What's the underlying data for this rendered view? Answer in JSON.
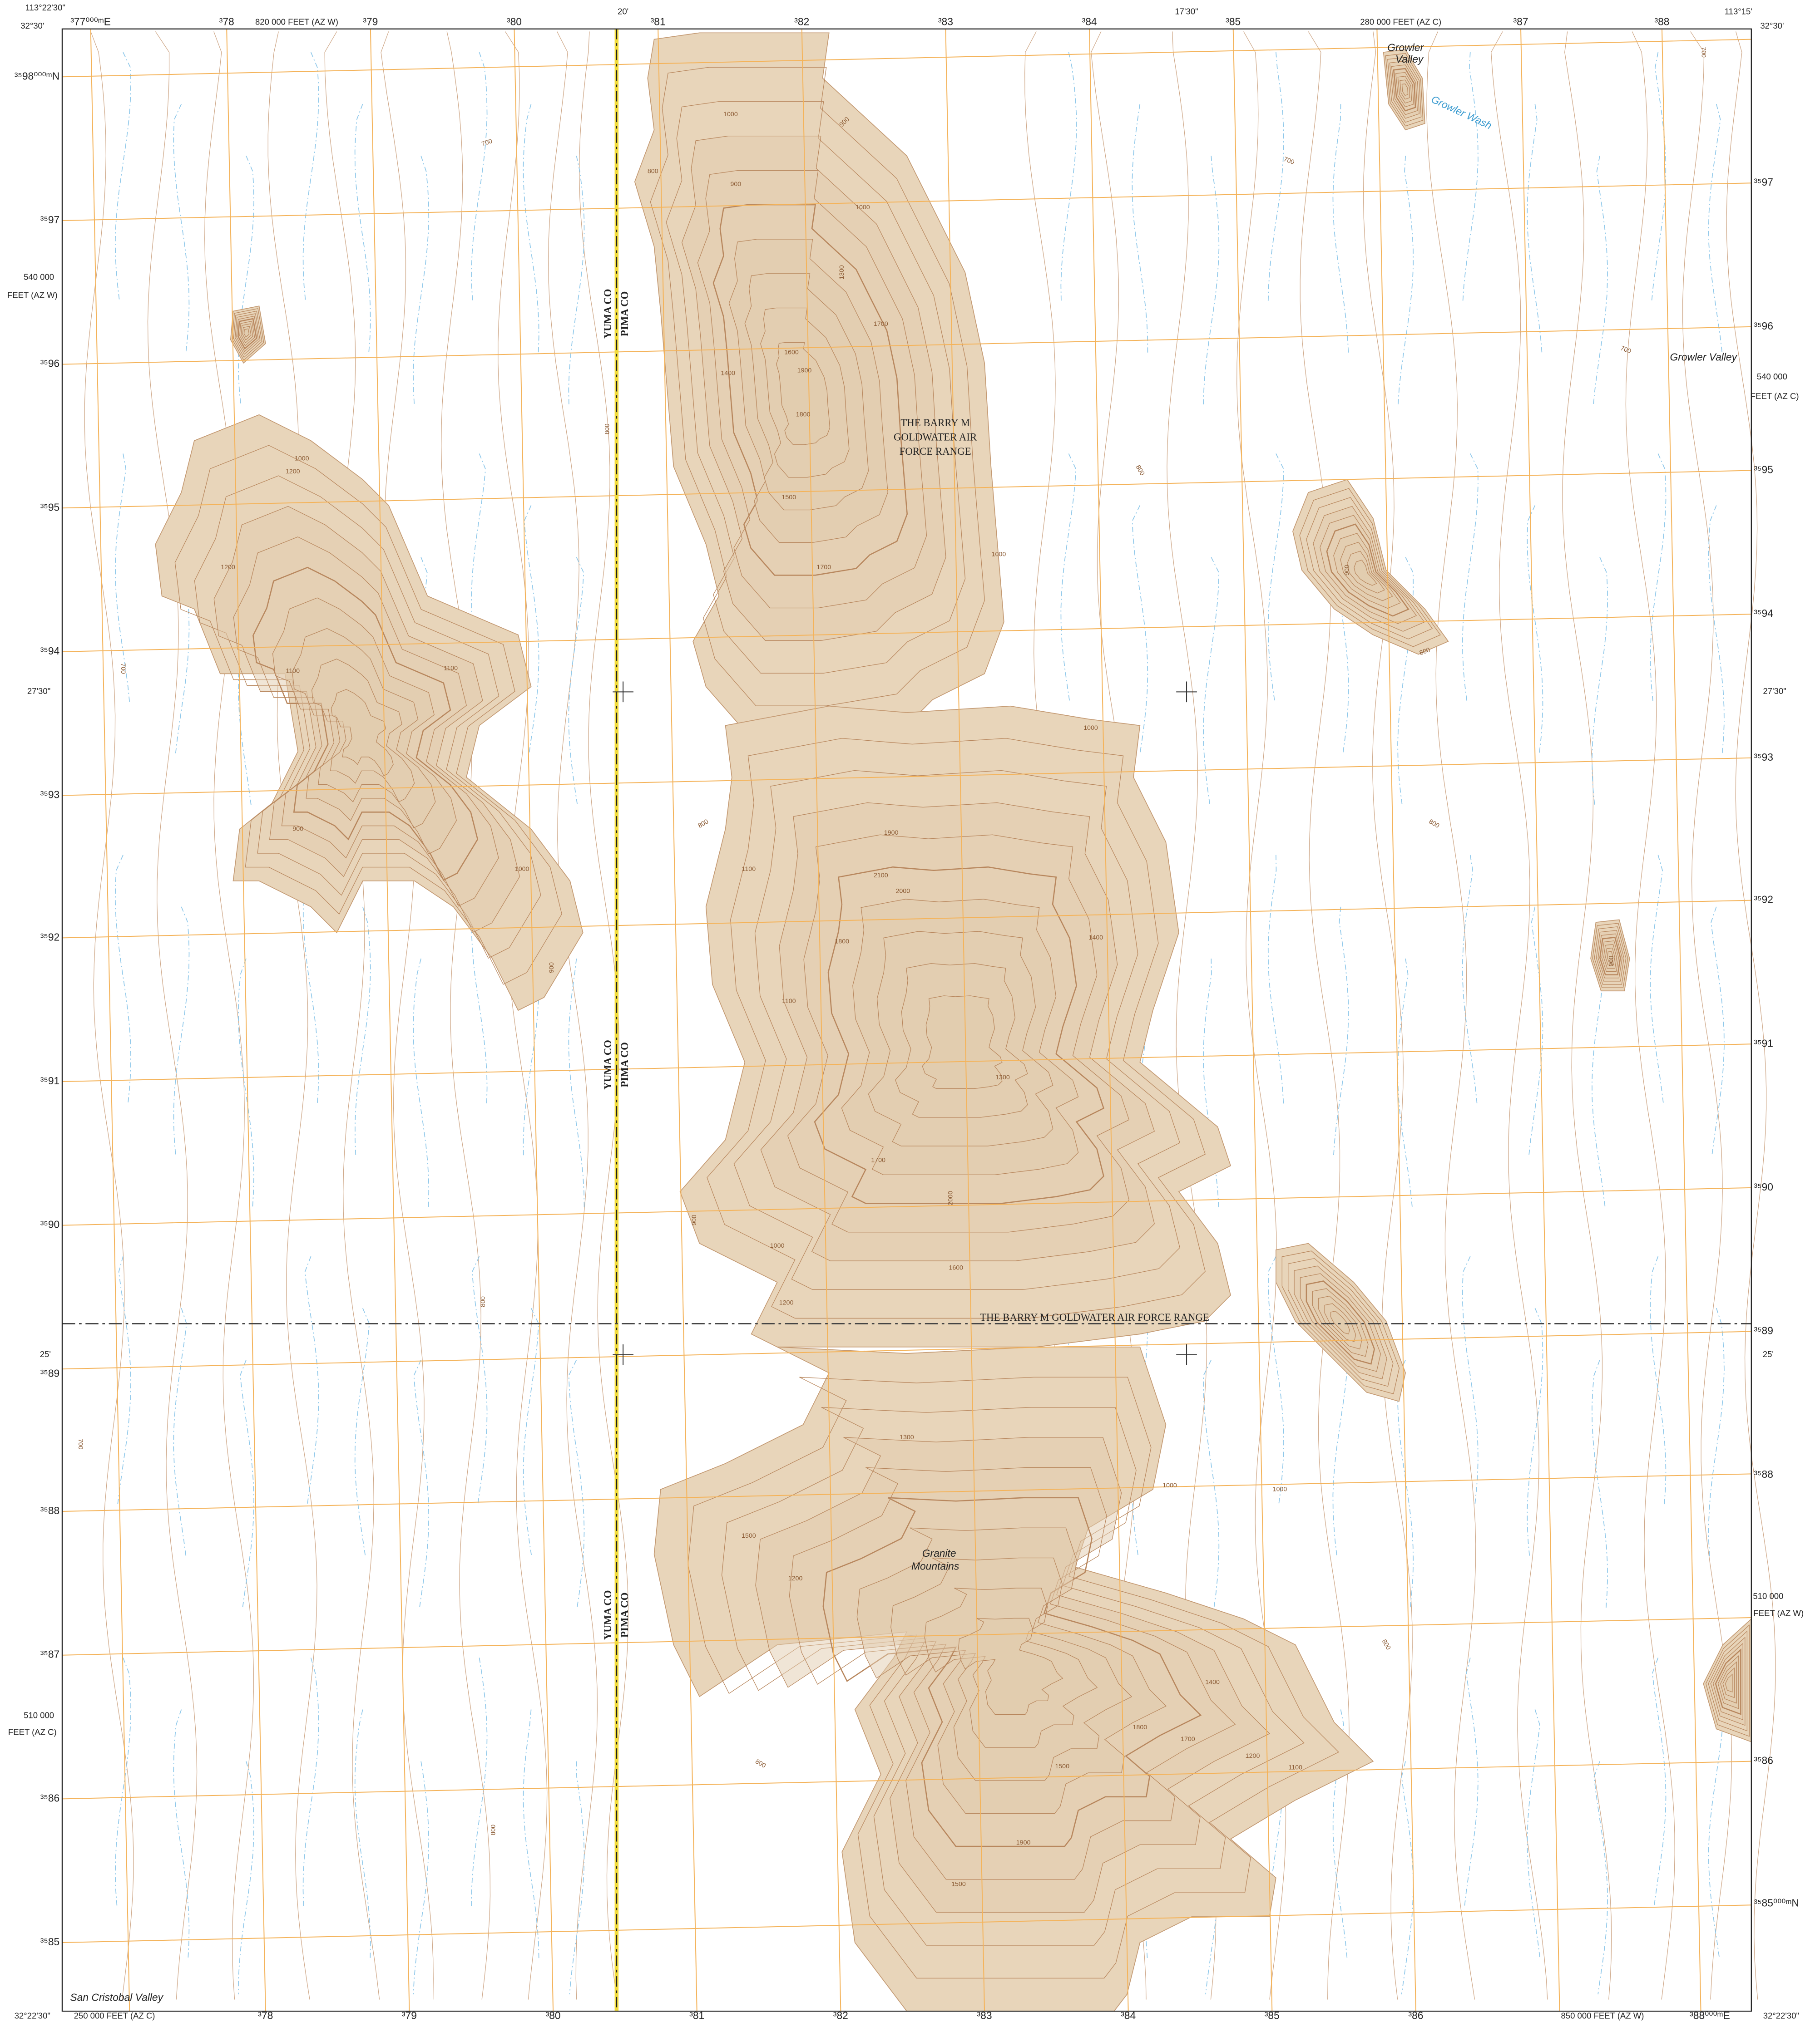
{
  "map": {
    "edge_labels": [
      "113°22'30\"",
      "32°30'",
      "20'",
      "17'30\"",
      "113°15'",
      "32°30'",
      "820 000 FEET (AZ W)",
      "280 000 FEET (AZ C)",
      "540 000",
      "FEET (AZ W)",
      "540 000",
      "FEET (AZ C)",
      "27'30\"",
      "27'30\"",
      "25'",
      "25'",
      "510 000",
      "FEET (AZ C)",
      "510 000",
      "FEET (AZ W)",
      "32°22'30\"",
      "250 000 FEET (AZ C)",
      "850 000 FEET (AZ W)",
      "32°22'30\""
    ],
    "grid_top": [
      "³77⁰⁰⁰ᵐE",
      "³78",
      "³79",
      "³80",
      "³81",
      "³82",
      "³83",
      "³84",
      "³85",
      "³87",
      "³88"
    ],
    "grid_bottom": [
      "³78",
      "³79",
      "³80",
      "³81",
      "³82",
      "³83",
      "³84",
      "³85",
      "³86",
      "³88⁰⁰⁰ᵐE"
    ],
    "grid_left": [
      "³⁵98⁰⁰⁰ᵐN",
      "³⁵97",
      "³⁵96",
      "³⁵95",
      "³⁵94",
      "³⁵93",
      "³⁵92",
      "³⁵91",
      "³⁵90",
      "³⁵89",
      "³⁵88",
      "³⁵87",
      "³⁵86",
      "³⁵85"
    ],
    "grid_right": [
      "³⁵97",
      "³⁵96",
      "³⁵95",
      "³⁵94",
      "³⁵93",
      "³⁵92",
      "³⁵91",
      "³⁵90",
      "³⁵89",
      "³⁵88",
      "³⁵86",
      "³⁵85⁰⁰⁰ᵐN"
    ],
    "place_names": [
      "Growler",
      "Valley",
      "Growler Wash",
      "Growler Valley",
      "THE BARRY M",
      "GOLDWATER AIR",
      "FORCE RANGE",
      "YUMA CO",
      "PIMA CO",
      "YUMA CO",
      "PIMA CO",
      "YUMA CO",
      "PIMA CO",
      "THE BARRY M GOLDWATER AIR FORCE RANGE",
      "Granite",
      "Mountains",
      "San Cristobal Valley"
    ],
    "contour_labels": [
      "700",
      "700",
      "700",
      "700",
      "700",
      "700",
      "800",
      "800",
      "800",
      "800",
      "800",
      "800",
      "800",
      "800",
      "800",
      "800",
      "900",
      "900",
      "900",
      "900",
      "900",
      "900",
      "900",
      "1000",
      "1000",
      "1000",
      "1000",
      "1000",
      "1000",
      "1000",
      "1000",
      "1000",
      "1100",
      "1100",
      "1100",
      "1100",
      "1100",
      "1200",
      "1200",
      "1200",
      "1200",
      "1200",
      "1300",
      "1300",
      "1300",
      "1400",
      "1400",
      "1400",
      "1500",
      "1500",
      "1500",
      "1500",
      "1600",
      "1600",
      "1700",
      "1700",
      "1700",
      "1700",
      "1800",
      "1800",
      "1800",
      "1900",
      "1900",
      "1900",
      "2000",
      "2000",
      "2100"
    ]
  }
}
